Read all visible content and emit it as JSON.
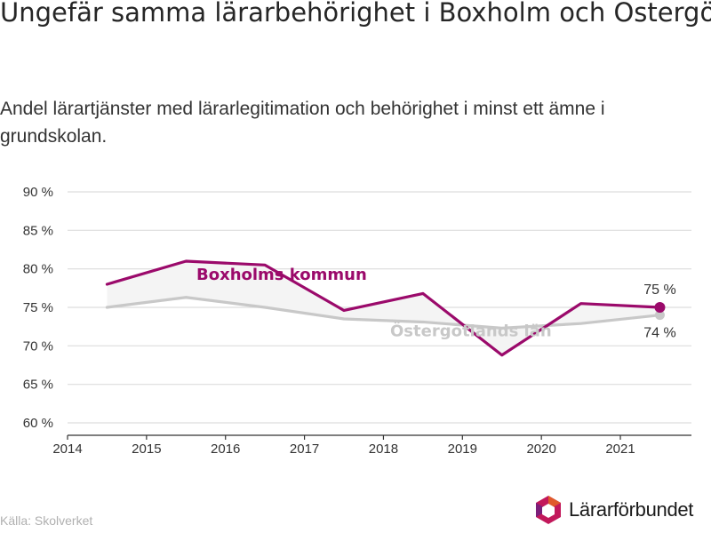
{
  "title": "Ungefär samma lärarbehörighet i Boxholm och Östergötlands län",
  "subtitle": "Andel lärartjänster med lärarlegitimation och behörighet i minst ett ämne i grundskolan.",
  "source": "Källa: Skolverket",
  "logo": {
    "text": "Lärarförbundet",
    "name": "lararforbundet-logo"
  },
  "colors": {
    "boxholm": "#9b0a6b",
    "ostergotland": "#c8c8c8",
    "gap_fill": "#f4f4f4",
    "grid": "#dddddd"
  },
  "chart_data": {
    "type": "line",
    "title": "Ungefär samma lärarbehörighet i Boxholm och Östergötlands län",
    "subtitle": "Andel lärartjänster med lärarlegitimation och behörighet i minst ett ämne i grundskolan.",
    "xlabel": "",
    "ylabel": "",
    "x": [
      2014.5,
      2015.5,
      2016.5,
      2017.5,
      2018.5,
      2019.5,
      2020.5,
      2021.5
    ],
    "x_ticks": [
      "2014",
      "2015",
      "2016",
      "2017",
      "2018",
      "2019",
      "2020",
      "2021"
    ],
    "x_range": [
      2014,
      2021.9
    ],
    "y_ticks": [
      "60 %",
      "65 %",
      "70 %",
      "75 %",
      "80 %",
      "85 %",
      "90 %"
    ],
    "ylim": [
      60,
      90
    ],
    "grid": true,
    "legend": "inline labels",
    "series": [
      {
        "name": "Boxholms kommun",
        "values": [
          78.0,
          81.0,
          80.5,
          74.6,
          76.8,
          68.8,
          75.5,
          75.0
        ],
        "end_label": "75 %"
      },
      {
        "name": "Östergötlands län",
        "values": [
          75.0,
          76.3,
          75.0,
          73.5,
          73.1,
          72.3,
          72.9,
          74.0
        ],
        "end_label": "74 %"
      }
    ]
  }
}
